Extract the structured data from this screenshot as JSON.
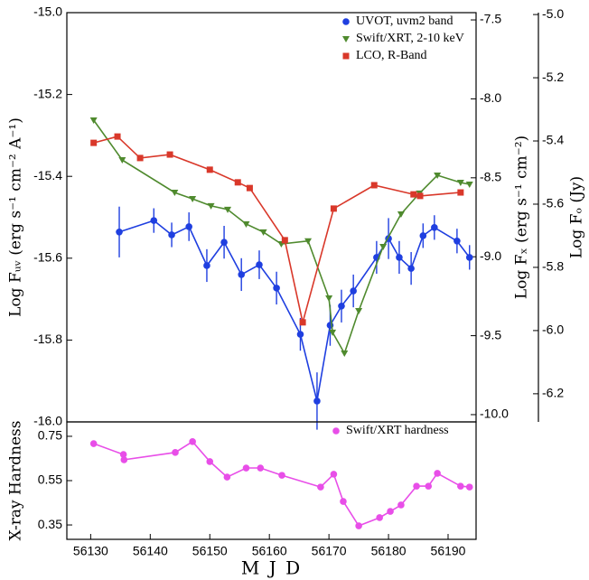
{
  "chart_data": [
    {
      "type": "line",
      "ylabel": "Log Fᵤᵥ (erg s⁻¹ cm⁻² A⁻¹)",
      "y2label": "Log Fₓ (erg s⁻¹ cm⁻²)",
      "y3label": "Log Fₒ (Jy)",
      "xlim": [
        56126,
        56194.7
      ],
      "ylim": [
        -16.0,
        -15.0
      ],
      "yticks": [
        {
          "value": -15.0,
          "label": "-15.0"
        },
        -15.2,
        -15.4,
        -15.6,
        -15.8,
        {
          "value": -16.0,
          "label": "-16.0"
        }
      ],
      "y2lim": [
        -10.046,
        -7.454
      ],
      "y2ticks": [
        -7.5,
        {
          "value": -8.0,
          "label": "-8.0"
        },
        -8.5,
        {
          "value": -9.0,
          "label": "-9.0"
        },
        -9.5,
        {
          "value": -10.0,
          "label": "-10.0"
        }
      ],
      "y3lim": [
        -6.289,
        -4.994
      ],
      "y3ticks": [
        {
          "value": -5.0,
          "label": "-5.0"
        },
        -5.2,
        -5.4,
        -5.6,
        -5.8,
        {
          "value": -6.0,
          "label": "-6.0"
        },
        -6.2
      ],
      "legend": "upper right",
      "series": [
        {
          "name": "UVOT, uvm2 band",
          "color": "#1f3fe0",
          "marker": "circle",
          "axis": "y",
          "x": [
            56134.8,
            56140.6,
            56143.6,
            56146.5,
            56149.5,
            56152.4,
            56155.3,
            56158.3,
            56161.2,
            56165.2,
            56168.0,
            56170.2,
            56172.1,
            56174.1,
            56178.0,
            56180.0,
            56181.8,
            56183.8,
            56185.8,
            56187.7,
            56191.5,
            56193.6
          ],
          "values": [
            -15.536,
            -15.508,
            -15.543,
            -15.523,
            -15.618,
            -15.561,
            -15.64,
            -15.616,
            -15.673,
            -15.786,
            -15.949,
            -15.764,
            -15.717,
            -15.68,
            -15.598,
            -15.552,
            -15.598,
            -15.625,
            -15.545,
            -15.525,
            -15.558,
            -15.598
          ],
          "errors": [
            0.062,
            0.03,
            0.03,
            0.035,
            0.04,
            0.04,
            0.04,
            0.035,
            0.04,
            0.04,
            0.07,
            0.05,
            0.04,
            0.04,
            0.04,
            0.05,
            0.04,
            0.04,
            0.03,
            0.03,
            0.03,
            0.03
          ]
        },
        {
          "name": "Swift/XRT, 2-10 keV",
          "color": "#4f8a2e",
          "marker": "triangle-down",
          "axis": "y2",
          "x": [
            56130.5,
            56135.3,
            56144.1,
            56147.1,
            56150.2,
            56153.0,
            56156.1,
            56159.0,
            56162.0,
            56166.5,
            56170.0,
            56170.6,
            56172.6,
            56175.0,
            56179.1,
            56182.1,
            56185.2,
            56188.2,
            56192.1,
            56193.6
          ],
          "values": [
            -8.135,
            -8.387,
            -8.593,
            -8.633,
            -8.678,
            -8.701,
            -8.793,
            -8.844,
            -8.919,
            -8.9,
            -9.262,
            -9.479,
            -9.611,
            -9.342,
            -8.936,
            -8.73,
            -8.598,
            -8.484,
            -8.53,
            -8.541
          ]
        },
        {
          "name": "LCO, R-Band",
          "color": "#d9382a",
          "marker": "square",
          "axis": "y3",
          "x": [
            56130.5,
            56134.5,
            56138.3,
            56143.3,
            56150.0,
            56154.7,
            56156.7,
            56162.6,
            56165.6,
            56170.8,
            56177.6,
            56184.2,
            56185.3,
            56192.1
          ],
          "values": [
            -5.406,
            -5.386,
            -5.454,
            -5.443,
            -5.491,
            -5.531,
            -5.549,
            -5.714,
            -5.974,
            -5.614,
            -5.54,
            -5.569,
            -5.574,
            -5.563
          ]
        }
      ]
    },
    {
      "type": "line",
      "xlabel": "M J D",
      "ylabel": "X-ray Hardness",
      "xlim": [
        56126,
        56194.7
      ],
      "xticks": [
        56130,
        56140,
        56150,
        56160,
        56170,
        56180,
        56190
      ],
      "ylim": [
        0.285,
        0.815
      ],
      "yticks": [
        0.75,
        0.55,
        0.35
      ],
      "legend": "upper right",
      "series": [
        {
          "name": "Swift/XRT hardness",
          "color": "#e84ee8",
          "marker": "circle",
          "axis": "y",
          "x": [
            56130.5,
            56135.5,
            56135.6,
            56144.2,
            56147.1,
            56150.0,
            56152.9,
            56156.1,
            56158.5,
            56162.1,
            56168.6,
            56170.8,
            56172.4,
            56175.0,
            56178.5,
            56180.3,
            56182.1,
            56184.7,
            56186.7,
            56188.2,
            56192.1,
            56193.6
          ],
          "values": [
            0.717,
            0.668,
            0.644,
            0.677,
            0.726,
            0.636,
            0.566,
            0.607,
            0.607,
            0.574,
            0.521,
            0.579,
            0.456,
            0.346,
            0.383,
            0.411,
            0.44,
            0.525,
            0.525,
            0.583,
            0.525,
            0.521
          ]
        }
      ]
    }
  ]
}
